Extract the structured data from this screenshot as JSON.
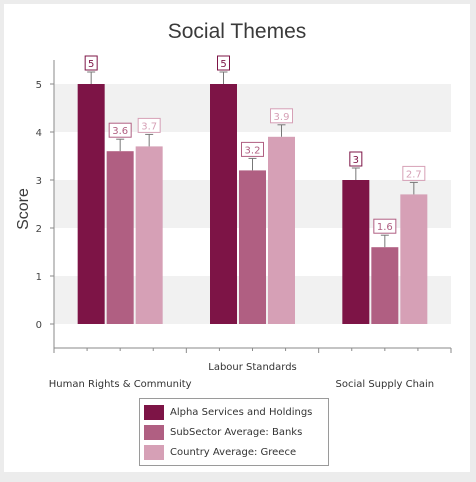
{
  "chart_data": {
    "type": "bar",
    "title": "Social Themes",
    "ylabel": "Score",
    "ylim": [
      -0.5,
      5.5
    ],
    "yticks": [
      0,
      1,
      2,
      3,
      4,
      5
    ],
    "grid": true,
    "categories": [
      "Human Rights & Community",
      "Labour Standards",
      "Social Supply Chain"
    ],
    "series": [
      {
        "name": "Alpha Services and Holdings",
        "values": [
          5,
          5,
          3
        ],
        "labels": [
          "5",
          "5",
          "3"
        ],
        "color": "#7d1446",
        "error": [
          0.25,
          0.25,
          0.25
        ]
      },
      {
        "name": "SubSector Average: Banks",
        "values": [
          3.6,
          3.2,
          1.6
        ],
        "labels": [
          "3.6",
          "3.2",
          "1.6"
        ],
        "color": "#b05f82",
        "error": [
          0.25,
          0.25,
          0.25
        ]
      },
      {
        "name": "Country Average: Greece",
        "values": [
          3.7,
          3.9,
          2.7
        ],
        "labels": [
          "3.7",
          "3.9",
          "2.7"
        ],
        "color": "#d6a0b6",
        "error": [
          0.25,
          0.25,
          0.25
        ]
      }
    ],
    "legend_position": "bottom"
  }
}
